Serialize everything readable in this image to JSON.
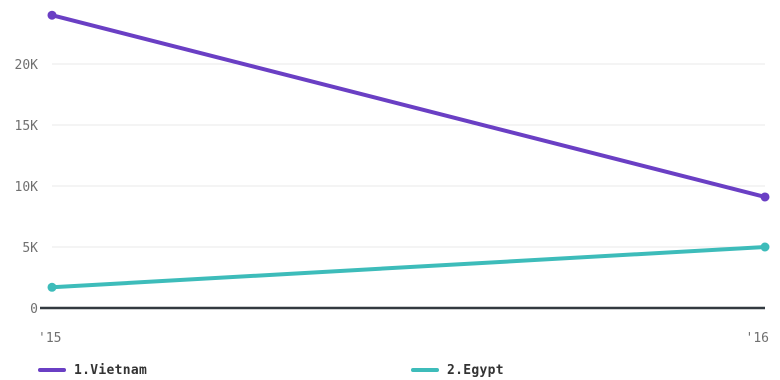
{
  "chart_data": {
    "type": "line",
    "x": [
      "'15",
      "'16"
    ],
    "y_ticks": [
      "0",
      "5K",
      "10K",
      "15K",
      "20K"
    ],
    "ylim": [
      0,
      25000
    ],
    "grid": true,
    "legend_position": "bottom",
    "series": [
      {
        "name": "1.Vietnam",
        "color": "#6a3fc4",
        "values": [
          24000,
          9100
        ]
      },
      {
        "name": "2.Egypt",
        "color": "#3dbcba",
        "values": [
          1700,
          5000
        ]
      }
    ]
  }
}
